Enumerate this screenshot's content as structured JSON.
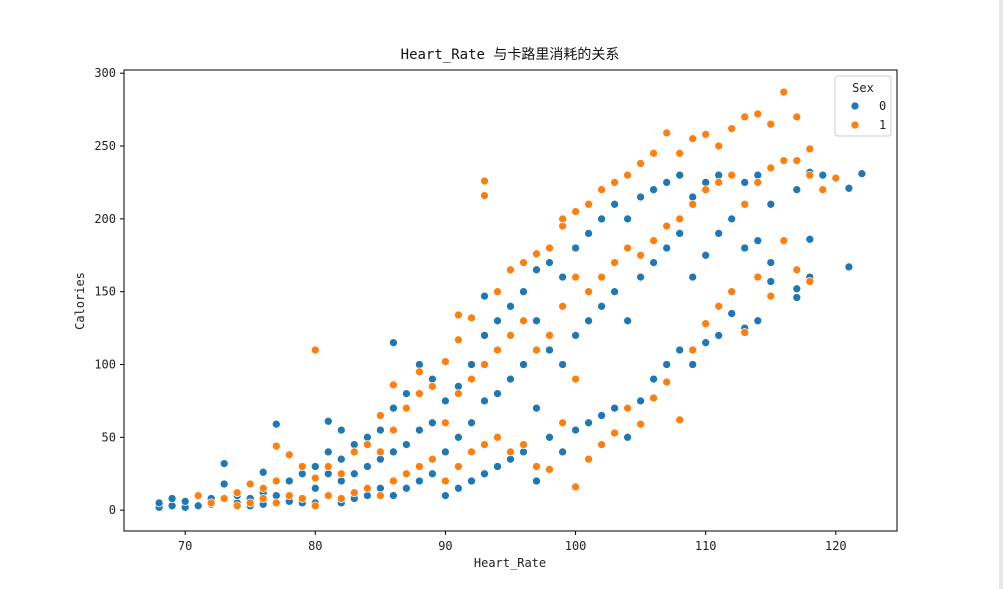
{
  "chart_data": {
    "type": "scatter",
    "title": "Heart_Rate 与卡路里消耗的关系",
    "xlabel": "Heart_Rate",
    "ylabel": "Calories",
    "xlim": [
      65.3,
      124.7
    ],
    "ylim": [
      -14.3,
      302.2
    ],
    "xticks": [
      70,
      80,
      90,
      100,
      110,
      120
    ],
    "yticks": [
      0,
      50,
      100,
      150,
      200,
      250,
      300
    ],
    "grid": false,
    "legend": {
      "title": "Sex",
      "placement": "top-right",
      "entries": [
        "0",
        "1"
      ]
    },
    "series": [
      {
        "name": "0",
        "color": "#1f77b4",
        "points": [
          [
            68,
            2
          ],
          [
            68,
            5
          ],
          [
            69,
            3
          ],
          [
            69,
            8
          ],
          [
            70,
            2
          ],
          [
            70,
            6
          ],
          [
            71,
            3
          ],
          [
            72,
            4
          ],
          [
            72,
            8
          ],
          [
            73,
            18
          ],
          [
            73,
            32
          ],
          [
            74,
            5
          ],
          [
            74,
            10
          ],
          [
            75,
            3
          ],
          [
            75,
            8
          ],
          [
            76,
            4
          ],
          [
            76,
            12
          ],
          [
            76,
            26
          ],
          [
            77,
            10
          ],
          [
            77,
            59
          ],
          [
            78,
            6
          ],
          [
            78,
            20
          ],
          [
            79,
            5
          ],
          [
            79,
            25
          ],
          [
            80,
            5
          ],
          [
            80,
            15
          ],
          [
            80,
            30
          ],
          [
            81,
            10
          ],
          [
            81,
            25
          ],
          [
            81,
            40
          ],
          [
            81,
            61
          ],
          [
            82,
            5
          ],
          [
            82,
            20
          ],
          [
            82,
            35
          ],
          [
            82,
            55
          ],
          [
            83,
            8
          ],
          [
            83,
            25
          ],
          [
            83,
            45
          ],
          [
            84,
            10
          ],
          [
            84,
            30
          ],
          [
            84,
            50
          ],
          [
            85,
            15
          ],
          [
            85,
            35
          ],
          [
            85,
            55
          ],
          [
            86,
            10
          ],
          [
            86,
            40
          ],
          [
            86,
            70
          ],
          [
            86,
            115
          ],
          [
            87,
            15
          ],
          [
            87,
            45
          ],
          [
            87,
            80
          ],
          [
            88,
            20
          ],
          [
            88,
            55
          ],
          [
            88,
            100
          ],
          [
            89,
            25
          ],
          [
            89,
            60
          ],
          [
            89,
            90
          ],
          [
            90,
            10
          ],
          [
            90,
            40
          ],
          [
            90,
            75
          ],
          [
            91,
            15
          ],
          [
            91,
            50
          ],
          [
            91,
            85
          ],
          [
            92,
            20
          ],
          [
            92,
            60
          ],
          [
            92,
            100
          ],
          [
            93,
            25
          ],
          [
            93,
            75
          ],
          [
            93,
            120
          ],
          [
            93,
            147
          ],
          [
            94,
            30
          ],
          [
            94,
            80
          ],
          [
            94,
            130
          ],
          [
            95,
            35
          ],
          [
            95,
            90
          ],
          [
            95,
            140
          ],
          [
            96,
            40
          ],
          [
            96,
            100
          ],
          [
            96,
            150
          ],
          [
            97,
            20
          ],
          [
            97,
            70
          ],
          [
            97,
            130
          ],
          [
            97,
            165
          ],
          [
            98,
            50
          ],
          [
            98,
            110
          ],
          [
            98,
            170
          ],
          [
            99,
            40
          ],
          [
            99,
            100
          ],
          [
            99,
            160
          ],
          [
            100,
            55
          ],
          [
            100,
            120
          ],
          [
            100,
            180
          ],
          [
            101,
            60
          ],
          [
            101,
            130
          ],
          [
            101,
            190
          ],
          [
            102,
            65
          ],
          [
            102,
            140
          ],
          [
            102,
            200
          ],
          [
            103,
            70
          ],
          [
            103,
            150
          ],
          [
            103,
            210
          ],
          [
            104,
            50
          ],
          [
            104,
            130
          ],
          [
            104,
            200
          ],
          [
            105,
            75
          ],
          [
            105,
            160
          ],
          [
            105,
            215
          ],
          [
            106,
            90
          ],
          [
            106,
            170
          ],
          [
            106,
            220
          ],
          [
            107,
            100
          ],
          [
            107,
            180
          ],
          [
            107,
            225
          ],
          [
            108,
            110
          ],
          [
            108,
            190
          ],
          [
            108,
            230
          ],
          [
            109,
            100
          ],
          [
            109,
            160
          ],
          [
            109,
            215
          ],
          [
            110,
            115
          ],
          [
            110,
            175
          ],
          [
            110,
            225
          ],
          [
            111,
            120
          ],
          [
            111,
            190
          ],
          [
            111,
            230
          ],
          [
            112,
            135
          ],
          [
            112,
            200
          ],
          [
            112,
            230
          ],
          [
            113,
            125
          ],
          [
            113,
            180
          ],
          [
            113,
            225
          ],
          [
            114,
            130
          ],
          [
            114,
            185
          ],
          [
            114,
            230
          ],
          [
            115,
            157
          ],
          [
            115,
            170
          ],
          [
            115,
            210
          ],
          [
            117,
            146
          ],
          [
            117,
            152
          ],
          [
            117,
            220
          ],
          [
            118,
            160
          ],
          [
            118,
            186
          ],
          [
            118,
            232
          ],
          [
            119,
            230
          ],
          [
            121,
            167
          ],
          [
            121,
            221
          ],
          [
            122,
            231
          ]
        ]
      },
      {
        "name": "1",
        "color": "#ff7f0e",
        "points": [
          [
            71,
            10
          ],
          [
            72,
            5
          ],
          [
            73,
            8
          ],
          [
            74,
            3
          ],
          [
            74,
            12
          ],
          [
            75,
            5
          ],
          [
            75,
            18
          ],
          [
            76,
            8
          ],
          [
            76,
            15
          ],
          [
            77,
            5
          ],
          [
            77,
            20
          ],
          [
            77,
            44
          ],
          [
            78,
            10
          ],
          [
            78,
            38
          ],
          [
            79,
            8
          ],
          [
            79,
            30
          ],
          [
            80,
            3
          ],
          [
            80,
            22
          ],
          [
            80,
            110
          ],
          [
            81,
            10
          ],
          [
            81,
            30
          ],
          [
            82,
            8
          ],
          [
            82,
            25
          ],
          [
            83,
            12
          ],
          [
            83,
            40
          ],
          [
            84,
            15
          ],
          [
            84,
            45
          ],
          [
            85,
            10
          ],
          [
            85,
            40
          ],
          [
            85,
            65
          ],
          [
            86,
            20
          ],
          [
            86,
            55
          ],
          [
            86,
            86
          ],
          [
            87,
            25
          ],
          [
            87,
            70
          ],
          [
            88,
            30
          ],
          [
            88,
            80
          ],
          [
            88,
            95
          ],
          [
            89,
            35
          ],
          [
            89,
            85
          ],
          [
            90,
            20
          ],
          [
            90,
            60
          ],
          [
            90,
            102
          ],
          [
            91,
            30
          ],
          [
            91,
            80
          ],
          [
            91,
            117
          ],
          [
            91,
            134
          ],
          [
            92,
            40
          ],
          [
            92,
            90
          ],
          [
            92,
            132
          ],
          [
            93,
            45
          ],
          [
            93,
            100
          ],
          [
            93,
            216
          ],
          [
            93,
            226
          ],
          [
            94,
            50
          ],
          [
            94,
            110
          ],
          [
            94,
            150
          ],
          [
            95,
            40
          ],
          [
            95,
            120
          ],
          [
            95,
            165
          ],
          [
            96,
            45
          ],
          [
            96,
            130
          ],
          [
            96,
            170
          ],
          [
            97,
            30
          ],
          [
            97,
            110
          ],
          [
            97,
            176
          ],
          [
            98,
            28
          ],
          [
            98,
            120
          ],
          [
            98,
            180
          ],
          [
            99,
            60
          ],
          [
            99,
            140
          ],
          [
            99,
            195
          ],
          [
            99,
            200
          ],
          [
            100,
            16
          ],
          [
            100,
            90
          ],
          [
            100,
            160
          ],
          [
            100,
            205
          ],
          [
            101,
            35
          ],
          [
            101,
            150
          ],
          [
            101,
            210
          ],
          [
            102,
            45
          ],
          [
            102,
            160
          ],
          [
            102,
            220
          ],
          [
            103,
            53
          ],
          [
            103,
            170
          ],
          [
            103,
            225
          ],
          [
            104,
            70
          ],
          [
            104,
            180
          ],
          [
            104,
            230
          ],
          [
            105,
            59
          ],
          [
            105,
            175
          ],
          [
            105,
            238
          ],
          [
            106,
            77
          ],
          [
            106,
            185
          ],
          [
            106,
            245
          ],
          [
            107,
            88
          ],
          [
            107,
            195
          ],
          [
            107,
            259
          ],
          [
            108,
            62
          ],
          [
            108,
            200
          ],
          [
            108,
            245
          ],
          [
            109,
            110
          ],
          [
            109,
            210
          ],
          [
            109,
            255
          ],
          [
            110,
            128
          ],
          [
            110,
            220
          ],
          [
            110,
            258
          ],
          [
            111,
            140
          ],
          [
            111,
            225
          ],
          [
            111,
            250
          ],
          [
            112,
            150
          ],
          [
            112,
            230
          ],
          [
            112,
            262
          ],
          [
            113,
            122
          ],
          [
            113,
            210
          ],
          [
            113,
            270
          ],
          [
            114,
            160
          ],
          [
            114,
            225
          ],
          [
            114,
            272
          ],
          [
            115,
            147
          ],
          [
            115,
            235
          ],
          [
            115,
            265
          ],
          [
            116,
            185
          ],
          [
            116,
            240
          ],
          [
            116,
            287
          ],
          [
            117,
            165
          ],
          [
            117,
            240
          ],
          [
            117,
            270
          ],
          [
            118,
            157
          ],
          [
            118,
            230
          ],
          [
            118,
            248
          ],
          [
            119,
            220
          ],
          [
            120,
            228
          ]
        ]
      }
    ]
  }
}
